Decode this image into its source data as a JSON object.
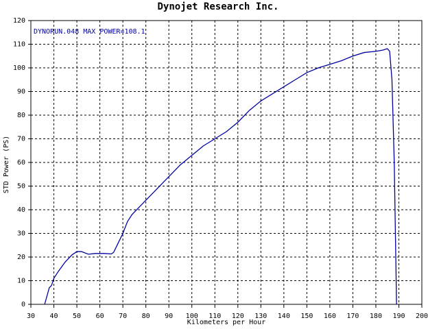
{
  "chart_data": {
    "type": "line",
    "title": "Dynojet  Research  Inc.",
    "annotation": "DYNORUN.048  MAX POWER=108.1",
    "xlabel": "Kilometers per Hour",
    "ylabel": "STD Power (PS)",
    "xlim": [
      30,
      200
    ],
    "ylim": [
      0,
      120
    ],
    "xticks": [
      30,
      40,
      50,
      60,
      70,
      80,
      90,
      100,
      110,
      120,
      130,
      140,
      150,
      160,
      170,
      180,
      190,
      200
    ],
    "yticks": [
      0,
      10,
      20,
      30,
      40,
      50,
      60,
      70,
      80,
      90,
      100,
      110,
      120
    ],
    "grid": true,
    "x": [
      36,
      38,
      39,
      40,
      42,
      45,
      48,
      50,
      52,
      55,
      58,
      62,
      65,
      66,
      68,
      70,
      72,
      74,
      77,
      80,
      85,
      90,
      95,
      100,
      105,
      110,
      115,
      120,
      125,
      130,
      135,
      140,
      145,
      150,
      155,
      160,
      165,
      170,
      175,
      180,
      183,
      185,
      186,
      187,
      188,
      188.5,
      189
    ],
    "series": [
      {
        "color": "#0000a0",
        "values": [
          0,
          7,
          8,
          11,
          14,
          18,
          21,
          22.3,
          22.3,
          21.2,
          21.5,
          21.5,
          21.3,
          22,
          26,
          30,
          35,
          38,
          41,
          44,
          49,
          54,
          59,
          63,
          67,
          70,
          73,
          77,
          82,
          86,
          89,
          92,
          95,
          98,
          100,
          101.5,
          103,
          105,
          106.5,
          107,
          107.5,
          108.1,
          107,
          95,
          60,
          30,
          0
        ]
      }
    ]
  }
}
